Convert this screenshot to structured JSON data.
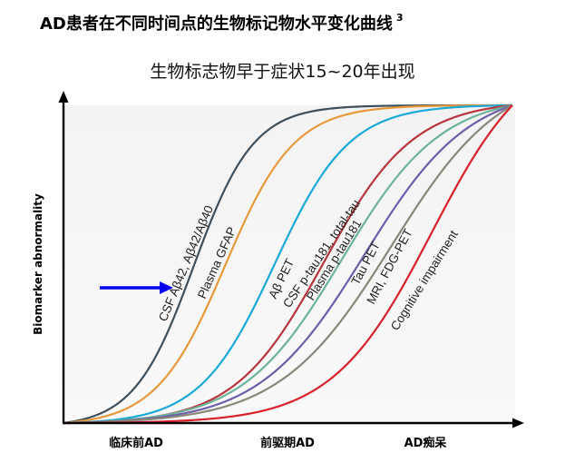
{
  "header": {
    "title": "AD患者在不同时间点的生物标记物水平变化曲线",
    "footnote": "3",
    "subtitle": "生物标志物早于症状15~20年出现"
  },
  "chart_data": {
    "type": "line",
    "title": "AD患者在不同时间点的生物标记物水平变化曲线",
    "subtitle": "生物标志物早于症状15~20年出现",
    "ylabel": "Biomarker abnormality",
    "xlabel": "",
    "x_categories": [
      "临床前AD",
      "前驱期AD",
      "AD痴呆"
    ],
    "x_range": [
      0,
      1
    ],
    "y_range": [
      0,
      1
    ],
    "grid": false,
    "legend": "none",
    "arrow_color": "#0000ee",
    "series": [
      {
        "name": "CSF Aβ42, Aβ42/Aβ40",
        "color": "#3d4f5c",
        "midpoint": 0.29,
        "steepness": 15
      },
      {
        "name": "Plasma GFAP",
        "color": "#e69a3c",
        "midpoint": 0.36,
        "steepness": 13
      },
      {
        "name": "Aβ PET",
        "color": "#1aa9d6",
        "midpoint": 0.47,
        "steepness": 12
      },
      {
        "name": "CSF p-tau181, total-tau",
        "color": "#b8353c",
        "midpoint": 0.58,
        "steepness": 10
      },
      {
        "name": "Plasma p-tau181",
        "color": "#6db39a",
        "midpoint": 0.62,
        "steepness": 9
      },
      {
        "name": "Tau PET",
        "color": "#6d5ea8",
        "midpoint": 0.67,
        "steepness": 8.5
      },
      {
        "name": "MRI, FDG-PET",
        "color": "#8a8778",
        "midpoint": 0.73,
        "steepness": 8
      },
      {
        "name": "Cognitive impairment",
        "color": "#d8212a",
        "midpoint": 0.82,
        "steepness": 9
      }
    ]
  }
}
